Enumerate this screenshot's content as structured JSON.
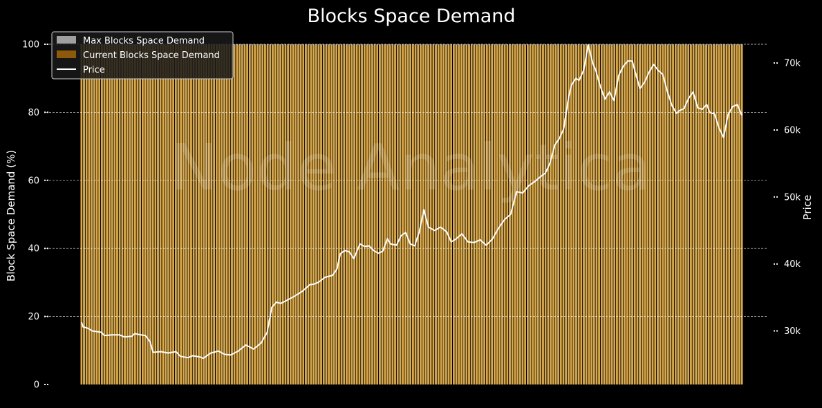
{
  "chart_data": {
    "type": "bar",
    "title": "Blocks Space Demand",
    "ylabel": "Block Space Demand (%)",
    "y2label": "Price",
    "ylim": [
      0,
      100
    ],
    "y2lim": [
      22000,
      72800
    ],
    "yticks": [
      0,
      20,
      40,
      60,
      80,
      100
    ],
    "y2ticks": [
      30000,
      40000,
      50000,
      60000,
      70000
    ],
    "y2tick_labels": [
      "30k",
      "40k",
      "50k",
      "60k",
      "70k"
    ],
    "grid": true,
    "legend_position": "top-left",
    "watermark": "Node Analytica",
    "colors": {
      "background": "#000000",
      "max_bar": "#a0a0a0",
      "current_bar": "#dba847",
      "current_legend": "#8c5a0a",
      "price_line": "#ffffff",
      "grid": "#ffffff"
    },
    "bar_count": 260,
    "series": [
      {
        "name": "Max Blocks Space Demand",
        "kind": "bar",
        "value_all": 100
      },
      {
        "name": "Current Blocks Space Demand",
        "kind": "bar",
        "value_all": 100
      },
      {
        "name": "Price",
        "kind": "line",
        "axis": "right",
        "points": [
          [
            0,
            31300
          ],
          [
            1,
            30600
          ],
          [
            4,
            30400
          ],
          [
            7,
            30000
          ],
          [
            10,
            29900
          ],
          [
            13,
            29800
          ],
          [
            15,
            29300
          ],
          [
            20,
            29400
          ],
          [
            25,
            29400
          ],
          [
            28,
            29100
          ],
          [
            33,
            29200
          ],
          [
            35,
            29600
          ],
          [
            39,
            29400
          ],
          [
            42,
            29300
          ],
          [
            45,
            28400
          ],
          [
            47,
            26800
          ],
          [
            52,
            26900
          ],
          [
            57,
            26700
          ],
          [
            62,
            26900
          ],
          [
            65,
            26200
          ],
          [
            70,
            26000
          ],
          [
            73,
            26300
          ],
          [
            78,
            26100
          ],
          [
            80,
            25900
          ],
          [
            85,
            26700
          ],
          [
            90,
            27000
          ],
          [
            94,
            26500
          ],
          [
            98,
            26400
          ],
          [
            103,
            27000
          ],
          [
            108,
            27900
          ],
          [
            113,
            27300
          ],
          [
            118,
            28200
          ],
          [
            122,
            29800
          ],
          [
            125,
            33500
          ],
          [
            128,
            34300
          ],
          [
            131,
            34100
          ],
          [
            136,
            34700
          ],
          [
            140,
            35200
          ],
          [
            145,
            35900
          ],
          [
            150,
            36900
          ],
          [
            153,
            37000
          ],
          [
            156,
            37300
          ],
          [
            160,
            38000
          ],
          [
            165,
            38300
          ],
          [
            168,
            39300
          ],
          [
            170,
            41500
          ],
          [
            173,
            42000
          ],
          [
            176,
            41800
          ],
          [
            179,
            40800
          ],
          [
            183,
            43000
          ],
          [
            186,
            42600
          ],
          [
            189,
            42700
          ],
          [
            192,
            42000
          ],
          [
            195,
            41600
          ],
          [
            198,
            41900
          ],
          [
            201,
            43800
          ],
          [
            203,
            43000
          ],
          [
            207,
            42800
          ],
          [
            210,
            44200
          ],
          [
            213,
            44700
          ],
          [
            216,
            43000
          ],
          [
            219,
            42700
          ],
          [
            222,
            44800
          ],
          [
            225,
            48100
          ],
          [
            228,
            45500
          ],
          [
            232,
            45000
          ],
          [
            236,
            45500
          ],
          [
            240,
            44800
          ],
          [
            243,
            43300
          ],
          [
            246,
            43700
          ],
          [
            250,
            44500
          ],
          [
            254,
            43300
          ],
          [
            258,
            43200
          ],
          [
            262,
            43600
          ],
          [
            266,
            42800
          ],
          [
            270,
            43700
          ],
          [
            274,
            45300
          ],
          [
            278,
            46600
          ],
          [
            282,
            47400
          ],
          [
            286,
            50800
          ],
          [
            290,
            50600
          ],
          [
            294,
            51700
          ],
          [
            298,
            52300
          ],
          [
            301,
            52900
          ],
          [
            305,
            53600
          ],
          [
            308,
            55100
          ],
          [
            311,
            57700
          ],
          [
            314,
            58700
          ],
          [
            317,
            60200
          ],
          [
            320,
            64700
          ],
          [
            322,
            66700
          ],
          [
            325,
            67700
          ],
          [
            327,
            67400
          ],
          [
            330,
            68900
          ],
          [
            333,
            72700
          ],
          [
            336,
            70000
          ],
          [
            338,
            68900
          ],
          [
            341,
            66500
          ],
          [
            344,
            64600
          ],
          [
            347,
            65700
          ],
          [
            350,
            64400
          ],
          [
            353,
            68100
          ],
          [
            356,
            69500
          ],
          [
            359,
            70300
          ],
          [
            362,
            70300
          ],
          [
            364,
            68600
          ],
          [
            367,
            66200
          ],
          [
            370,
            67100
          ],
          [
            373,
            68600
          ],
          [
            376,
            69800
          ],
          [
            379,
            68900
          ],
          [
            382,
            68300
          ],
          [
            385,
            65800
          ],
          [
            388,
            63700
          ],
          [
            391,
            62500
          ],
          [
            393,
            62900
          ],
          [
            396,
            63200
          ],
          [
            399,
            64700
          ],
          [
            402,
            65700
          ],
          [
            405,
            63300
          ],
          [
            408,
            63100
          ],
          [
            411,
            63800
          ],
          [
            413,
            62600
          ],
          [
            416,
            62400
          ],
          [
            419,
            60300
          ],
          [
            422,
            58900
          ],
          [
            425,
            62300
          ],
          [
            428,
            63500
          ],
          [
            431,
            63800
          ],
          [
            434,
            62200
          ]
        ]
      }
    ]
  }
}
